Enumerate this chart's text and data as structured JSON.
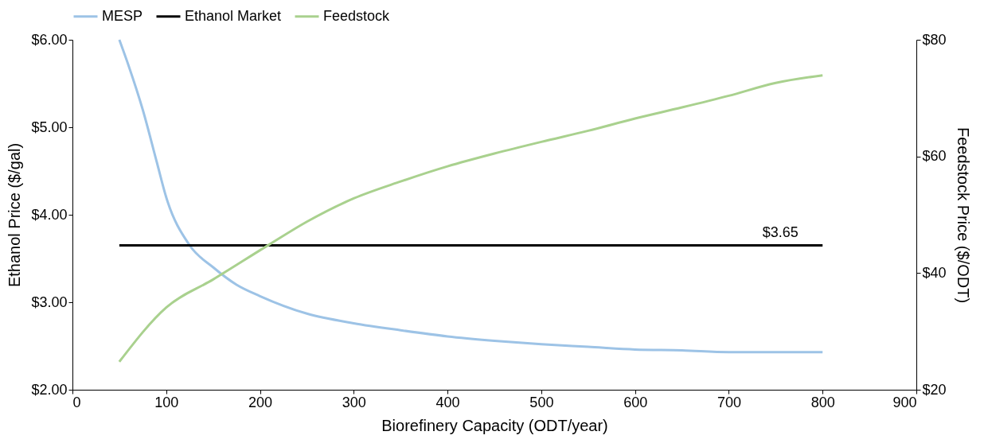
{
  "chart_data": {
    "type": "line",
    "xlabel": "Biorefinery Capacity (ODT/year)",
    "ylabel": "Ethanol Price ($/gal)",
    "y2label": "Feedstock Price ($/ODT)",
    "xlim": [
      0,
      900
    ],
    "xticks": [
      0,
      100,
      200,
      300,
      400,
      500,
      600,
      700,
      800,
      900
    ],
    "ylim": [
      2,
      6
    ],
    "yticks": [
      {
        "value": 2,
        "label": "$2.00"
      },
      {
        "value": 3,
        "label": "$3.00"
      },
      {
        "value": 4,
        "label": "$4.00"
      },
      {
        "value": 5,
        "label": "$5.00"
      },
      {
        "value": 6,
        "label": "$6.00"
      }
    ],
    "y2lim": [
      20,
      80
    ],
    "y2ticks": [
      {
        "value": 20,
        "label": "$20"
      },
      {
        "value": 40,
        "label": "$40"
      },
      {
        "value": 60,
        "label": "$60"
      },
      {
        "value": 80,
        "label": "$80"
      }
    ],
    "grid": false,
    "legend": "top",
    "line_style": "solid",
    "marker": "none",
    "annotations": [
      {
        "text": "$3.65",
        "x": 755,
        "y": 3.65
      }
    ],
    "series": [
      {
        "name": "MESP",
        "color": "#9dc3e6",
        "x": [
          50,
          60,
          75,
          90,
          100,
          125,
          150,
          175,
          200,
          250,
          300,
          350,
          400,
          450,
          500,
          550,
          600,
          650,
          700,
          750,
          800
        ],
        "values": [
          6.0,
          5.7,
          5.2,
          4.6,
          4.2,
          3.65,
          3.4,
          3.2,
          3.07,
          2.87,
          2.76,
          2.68,
          2.61,
          2.56,
          2.52,
          2.49,
          2.46,
          2.45,
          2.43,
          2.43,
          2.43
        ]
      },
      {
        "name": "Ethanol Market",
        "color": "#000000",
        "x": [
          50,
          800
        ],
        "values": [
          3.65,
          3.65
        ]
      },
      {
        "name": "Feedstock",
        "color": "#a9d18e",
        "axis": "y2",
        "x": [
          50,
          100,
          150,
          210,
          250,
          300,
          350,
          400,
          450,
          500,
          550,
          600,
          650,
          700,
          750,
          800
        ],
        "values": [
          24.8,
          34.1,
          38.9,
          44.9,
          48.8,
          52.8,
          55.7,
          58.3,
          60.5,
          62.5,
          64.4,
          66.5,
          68.4,
          70.4,
          72.6,
          73.9
        ]
      }
    ]
  }
}
